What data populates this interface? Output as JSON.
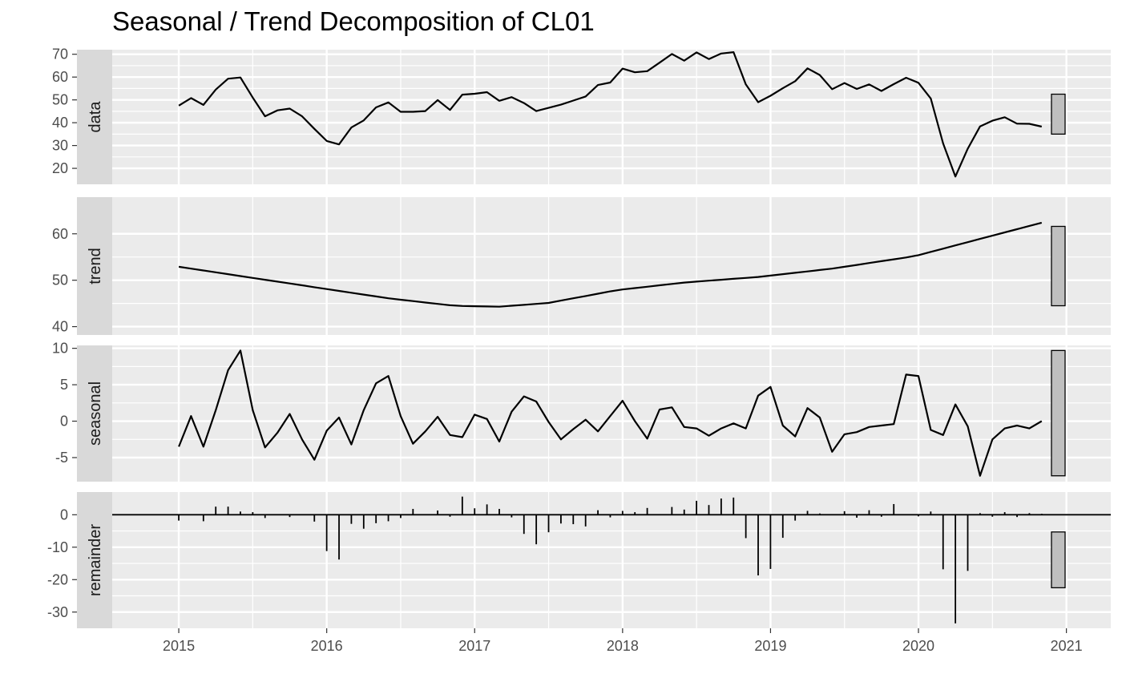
{
  "title": "Seasonal / Trend Decomposition of CL01",
  "colors": {
    "panel_background": "#ebebeb",
    "gridline": "#ffffff",
    "strip_background": "#d9d9d9",
    "series_line": "#000000",
    "range_bar_fill": "#bfbfbf"
  },
  "chart_data": {
    "type": "line",
    "title": "Seasonal / Trend Decomposition of CL01",
    "x_axis": {
      "ticks": [
        2015,
        2016,
        2017,
        2018,
        2019,
        2020,
        2021
      ],
      "tick_labels": [
        "2015",
        "2016",
        "2017",
        "2018",
        "2019",
        "2020",
        "2021"
      ],
      "range": [
        2014.55,
        2021.3
      ]
    },
    "time": {
      "start": 2015.0,
      "step": 0.08333,
      "count": 71
    },
    "grid": true,
    "facets": [
      {
        "strip": "data",
        "type": "line",
        "ylim": [
          13,
          72
        ],
        "y_ticks": [
          20,
          30,
          40,
          50,
          60,
          70
        ],
        "y_tick_labels": [
          "20",
          "30",
          "40",
          "50",
          "60",
          "70"
        ],
        "range_bar": [
          35,
          52.5
        ],
        "values": [
          47.5,
          50.8,
          47.8,
          54.5,
          59.3,
          59.8,
          51.0,
          42.8,
          45.4,
          46.2,
          42.8,
          37.3,
          32.0,
          30.5,
          37.9,
          41.0,
          46.7,
          48.9,
          44.8,
          44.8,
          45.1,
          49.9,
          45.6,
          52.3,
          52.7,
          53.4,
          49.6,
          51.2,
          48.6,
          45.1,
          46.5,
          47.9,
          49.7,
          51.5,
          56.5,
          57.6,
          63.7,
          62.1,
          62.6,
          66.3,
          70.1,
          67.2,
          70.8,
          67.9,
          70.3,
          70.9,
          56.8,
          49.0,
          51.8,
          55.1,
          58.2,
          63.8,
          60.9,
          54.7,
          57.4,
          54.8,
          56.8,
          53.9,
          56.9,
          59.7,
          57.5,
          50.6,
          30.9,
          16.4,
          28.6,
          38.4,
          40.9,
          42.4,
          39.6,
          39.5,
          38.3
        ]
      },
      {
        "strip": "trend",
        "type": "line",
        "ylim": [
          38.2,
          67.9
        ],
        "y_ticks": [
          40,
          50,
          60
        ],
        "y_tick_labels": [
          "40",
          "50",
          "60"
        ],
        "range_bar": [
          44.5,
          61.6
        ],
        "values": [
          52.9,
          52.5,
          52.1,
          51.7,
          51.3,
          50.9,
          50.5,
          50.1,
          49.7,
          49.3,
          48.9,
          48.5,
          48.1,
          47.7,
          47.3,
          46.9,
          46.5,
          46.1,
          45.8,
          45.5,
          45.2,
          44.9,
          44.6,
          44.45,
          44.4,
          44.35,
          44.3,
          44.5,
          44.7,
          44.9,
          45.1,
          45.6,
          46.1,
          46.6,
          47.1,
          47.6,
          48.0,
          48.3,
          48.6,
          48.9,
          49.2,
          49.5,
          49.7,
          49.9,
          50.1,
          50.3,
          50.5,
          50.7,
          51.0,
          51.3,
          51.6,
          51.9,
          52.2,
          52.5,
          52.9,
          53.3,
          53.7,
          54.1,
          54.5,
          54.9,
          55.4,
          56.1,
          56.8,
          57.5,
          58.2,
          58.9,
          59.6,
          60.3,
          61.0,
          61.7,
          62.4
        ]
      },
      {
        "strip": "seasonal",
        "type": "line",
        "ylim": [
          -8.3,
          10.4
        ],
        "y_ticks": [
          -5,
          0,
          5,
          10
        ],
        "y_tick_labels": [
          "-5",
          "0",
          "5",
          "10"
        ],
        "range_bar": [
          -7.5,
          9.7
        ],
        "values": [
          -3.5,
          0.7,
          -3.5,
          1.5,
          7.0,
          9.7,
          1.5,
          -3.6,
          -1.6,
          1.0,
          -2.5,
          -5.3,
          -1.3,
          0.5,
          -3.2,
          1.5,
          5.2,
          6.2,
          0.7,
          -3.1,
          -1.4,
          0.6,
          -1.9,
          -2.2,
          0.9,
          0.3,
          -2.8,
          1.3,
          3.4,
          2.7,
          -0.1,
          -2.5,
          -1.1,
          0.2,
          -1.4,
          0.7,
          2.8,
          0.0,
          -2.4,
          1.6,
          1.9,
          -0.8,
          -1.0,
          -2.0,
          -1.0,
          -0.3,
          -1.0,
          3.5,
          4.7,
          -0.6,
          -2.1,
          1.8,
          0.5,
          -4.2,
          -1.8,
          -1.5,
          -0.8,
          -0.6,
          -0.4,
          6.4,
          6.2,
          -1.2,
          -1.9,
          2.3,
          -0.7,
          -7.5,
          -2.5,
          -1.0,
          -0.6,
          -1.0,
          0.0
        ]
      },
      {
        "strip": "remainder",
        "type": "bar",
        "ylim": [
          -35,
          7
        ],
        "y_ticks": [
          -30,
          -20,
          -10,
          0
        ],
        "y_tick_labels": [
          "-30",
          "-20",
          "-10",
          "0"
        ],
        "range_bar": [
          -22.5,
          -5.3
        ],
        "values": [
          -1.8,
          0.0,
          -2.0,
          2.5,
          2.5,
          1.0,
          0.8,
          -1.0,
          0.0,
          -0.7,
          0.0,
          -2.1,
          -11.2,
          -13.8,
          -2.8,
          -4.3,
          -2.6,
          -2.0,
          -1.0,
          1.8,
          0.0,
          1.3,
          -0.6,
          5.6,
          2.0,
          3.2,
          1.8,
          -0.8,
          -5.9,
          -9.1,
          -5.4,
          -2.7,
          -2.9,
          -3.6,
          1.4,
          -0.8,
          1.2,
          0.8,
          2.1,
          0.0,
          2.4,
          1.6,
          4.3,
          3.0,
          5.0,
          5.3,
          -7.2,
          -18.7,
          -16.7,
          -7.1,
          -1.8,
          1.2,
          0.4,
          0.0,
          1.1,
          -0.9,
          1.4,
          -0.6,
          3.3,
          0.0,
          -0.5,
          1.0,
          -16.8,
          -33.5,
          -17.3,
          0.5,
          -0.6,
          0.8,
          -0.7,
          0.5,
          0.3
        ]
      }
    ]
  }
}
